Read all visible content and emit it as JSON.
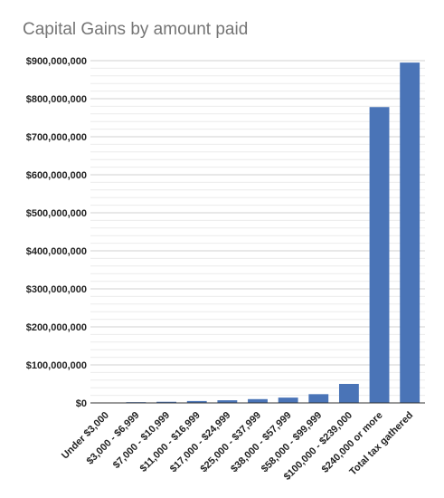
{
  "chart_data": {
    "type": "bar",
    "title": "Capital Gains by amount paid",
    "xlabel": "",
    "ylabel": "",
    "categories": [
      "Under $3,000",
      "$3,000 - $6,999",
      "$7,000 - $10,999",
      "$11,000 - $16,999",
      "$17,000 - $24,999",
      "$25,000 - $37,999",
      "$38,000 - $57,999",
      "$58,000 - $99,999",
      "$100,000 - $239,000",
      "$240,000 or more",
      "Total tax gathered"
    ],
    "values": [
      500000,
      2000000,
      3000000,
      5000000,
      7000000,
      10000000,
      14000000,
      23000000,
      50000000,
      778000000,
      895000000
    ],
    "ylim": [
      0,
      900000000
    ],
    "yticks": [
      0,
      100000000,
      200000000,
      300000000,
      400000000,
      500000000,
      600000000,
      700000000,
      800000000,
      900000000
    ],
    "ytick_labels": [
      "$0",
      "$100,000,000",
      "$200,000,000",
      "$300,000,000",
      "$400,000,000",
      "$500,000,000",
      "$600,000,000",
      "$700,000,000",
      "$800,000,000",
      "$900,000,000"
    ],
    "grid": true,
    "bar_color": "#4a74b7",
    "major_grid_color": "#d0d0d0",
    "minor_grid_color": "#ececec"
  }
}
